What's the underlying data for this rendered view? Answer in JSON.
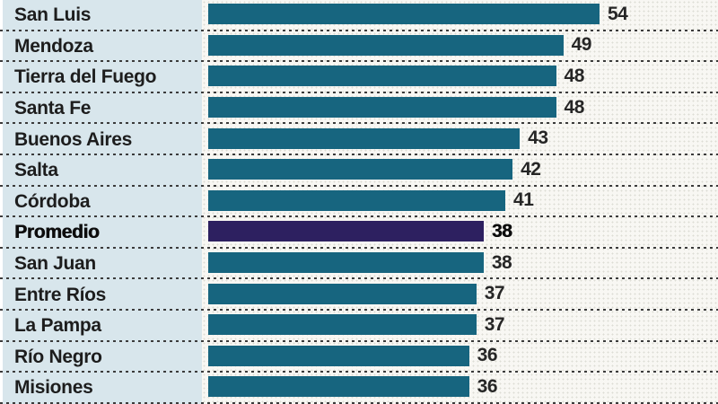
{
  "chart_data": {
    "type": "bar",
    "orientation": "horizontal",
    "title": "",
    "xlabel": "",
    "ylabel": "",
    "xlim": [
      0,
      54
    ],
    "grid": "dashed-row-separators",
    "legend": "none",
    "categories": [
      "San Luis",
      "Mendoza",
      "Tierra del Fuego",
      "Santa Fe",
      "Buenos Aires",
      "Salta",
      "Córdoba",
      "Promedio",
      "San Juan",
      "Entre Ríos",
      "La Pampa",
      "Río Negro",
      "Misiones"
    ],
    "values": [
      54,
      49,
      48,
      48,
      43,
      42,
      41,
      38,
      38,
      37,
      37,
      36,
      36
    ],
    "highlight_index": 7,
    "highlight_category": "Promedio",
    "colors": {
      "bar": "#17657f",
      "highlight_bar": "#2d2060",
      "label_panel": "#d8e6ec",
      "text": "#1d1d1d",
      "separator": "#3b3b3b",
      "background": "#f8f7f3"
    }
  }
}
